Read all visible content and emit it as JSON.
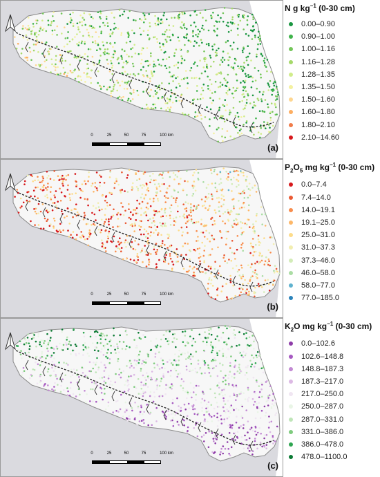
{
  "panels": [
    {
      "label": "(a)",
      "legend_title": {
        "pre": "N g kg",
        "sup": "−1",
        "post": " (0-30 cm)",
        "sub_chem": ""
      },
      "legend": [
        {
          "label": "0.00–0.90",
          "color": "#1a9641"
        },
        {
          "label": "0.90–1.00",
          "color": "#3fb34a"
        },
        {
          "label": "1.00–1.16",
          "color": "#74c65a"
        },
        {
          "label": "1.16–1.28",
          "color": "#a6d96a"
        },
        {
          "label": "1.28–1.35",
          "color": "#d0ec8a"
        },
        {
          "label": "1.35–1.50",
          "color": "#f4f1a0"
        },
        {
          "label": "1.50–1.60",
          "color": "#fed690"
        },
        {
          "label": "1.60–1.80",
          "color": "#fdae61"
        },
        {
          "label": "1.80–2.10",
          "color": "#f07c4a"
        },
        {
          "label": "2.10–14.60",
          "color": "#d7191c"
        }
      ]
    },
    {
      "label": "(b)",
      "legend_title": {
        "pre": "P",
        "sub": "2",
        "mid": "O",
        "sub2": "5",
        "post": " mg kg",
        "sup": "−1",
        "tail": " (0-30 cm)"
      },
      "legend": [
        {
          "label": "0.0–7.4",
          "color": "#d7191c"
        },
        {
          "label": "7.4–14.0",
          "color": "#ea5a33"
        },
        {
          "label": "14.0–19.1",
          "color": "#f88d4e"
        },
        {
          "label": "19.1–25.0",
          "color": "#fdb768"
        },
        {
          "label": "25.0–31.0",
          "color": "#fddc8a"
        },
        {
          "label": "31.0–37.3",
          "color": "#f2eeb0"
        },
        {
          "label": "37.3–46.0",
          "color": "#d3ecb8"
        },
        {
          "label": "46.0–58.0",
          "color": "#abdda4"
        },
        {
          "label": "58.0–77.0",
          "color": "#5fb2cf"
        },
        {
          "label": "77.0–185.0",
          "color": "#2b83ba"
        }
      ]
    },
    {
      "label": "(c)",
      "legend_title": {
        "pre": "K",
        "sub": "2",
        "mid": "O mg kg",
        "sup": "−1",
        "tail": " (0-30 cm)"
      },
      "legend": [
        {
          "label": "0.0–102.6",
          "color": "#8e3ca8"
        },
        {
          "label": "102.6–148.8",
          "color": "#a659c1"
        },
        {
          "label": "148.8–187.3",
          "color": "#c28ad3"
        },
        {
          "label": "187.3–217.0",
          "color": "#dcb9e4"
        },
        {
          "label": "217.0–250.0",
          "color": "#f0e6f2"
        },
        {
          "label": "250.0–287.0",
          "color": "#e9f5e6"
        },
        {
          "label": "287.0–331.0",
          "color": "#bfe5b8"
        },
        {
          "label": "331.0–386.0",
          "color": "#7fcb7e"
        },
        {
          "label": "386.0–478.0",
          "color": "#2fa551"
        },
        {
          "label": "478.0–1100.0",
          "color": "#0b7a33"
        }
      ]
    }
  ],
  "scale_bar": {
    "ticks": [
      "0",
      "25",
      "50",
      "75",
      "100 km"
    ]
  },
  "north_arrow": "north-arrow-icon"
}
